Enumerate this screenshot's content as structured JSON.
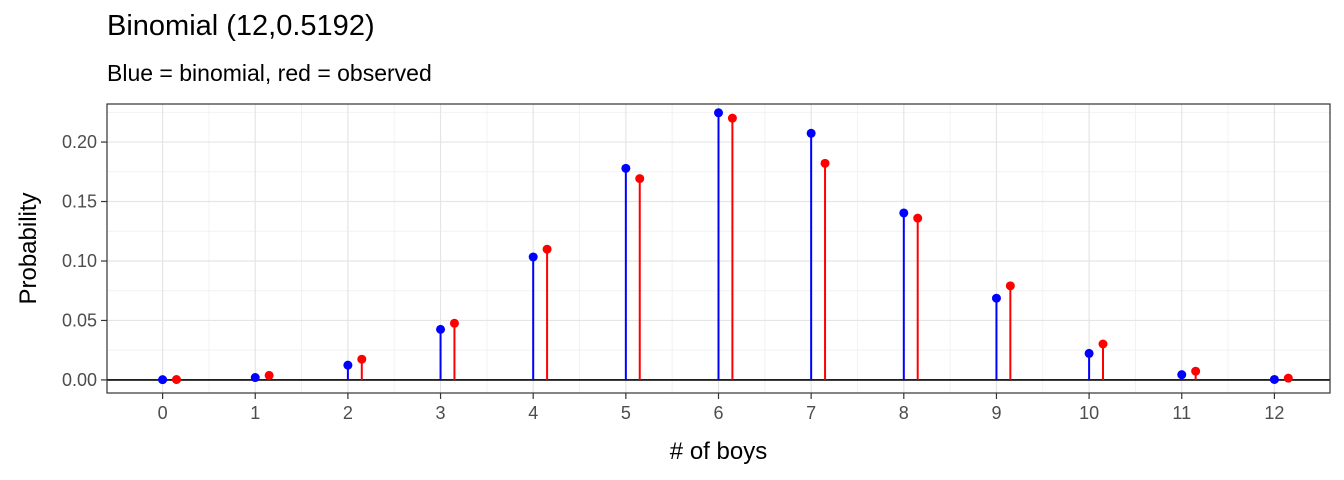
{
  "chart_data": {
    "type": "lollipop",
    "title": "Binomial (12,0.5192)",
    "subtitle": "Blue = binomial, red = observed",
    "xlabel": "# of boys",
    "ylabel": "Probability",
    "x": [
      0,
      1,
      2,
      3,
      4,
      5,
      6,
      7,
      8,
      9,
      10,
      11,
      12
    ],
    "x_tick_labels": [
      "0",
      "1",
      "2",
      "3",
      "4",
      "5",
      "6",
      "7",
      "8",
      "9",
      "10",
      "11",
      "12"
    ],
    "y_ticks": [
      0.0,
      0.05,
      0.1,
      0.15,
      0.2
    ],
    "y_tick_labels": [
      "0.00",
      "0.05",
      "0.10",
      "0.15",
      "0.20"
    ],
    "xlim": [
      -0.6,
      12.6
    ],
    "ylim": [
      -0.011,
      0.232
    ],
    "grid": true,
    "series": [
      {
        "name": "binomial",
        "color": "#0000ff",
        "offset": 0.0,
        "values": [
          0.0002,
          0.002,
          0.0124,
          0.0425,
          0.1034,
          0.1779,
          0.2246,
          0.2074,
          0.1404,
          0.0687,
          0.0223,
          0.0044,
          0.0004
        ]
      },
      {
        "name": "observed",
        "color": "#ff0000",
        "offset": 0.15,
        "values": [
          0.0003,
          0.0038,
          0.0174,
          0.0476,
          0.1099,
          0.1693,
          0.2201,
          0.1821,
          0.136,
          0.0791,
          0.0302,
          0.0073,
          0.0015
        ]
      }
    ]
  }
}
